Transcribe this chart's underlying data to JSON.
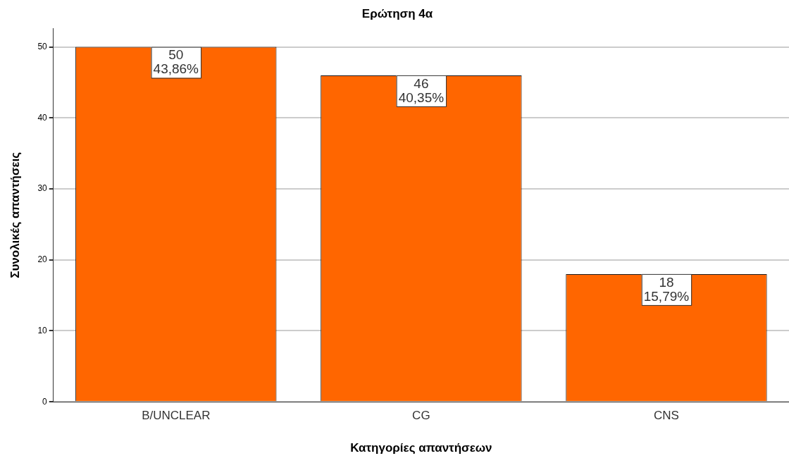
{
  "chart_data": {
    "type": "bar",
    "title": "Ερώτηση 4α",
    "xlabel": "Κατηγορίες απαντήσεων",
    "ylabel": "Συνολικές απαντήσεις",
    "categories": [
      "B/UNCLEAR",
      "CG",
      "CNS"
    ],
    "values": [
      50,
      46,
      18
    ],
    "color": "#ff6600",
    "value_labels": [
      "50\n43,86%",
      "46\n40,35%",
      "18\n15,79%"
    ],
    "ylim": [
      0,
      52.6
    ],
    "yticks": [
      0,
      10,
      20,
      30,
      40,
      50
    ],
    "grid": "y",
    "legend": false
  }
}
